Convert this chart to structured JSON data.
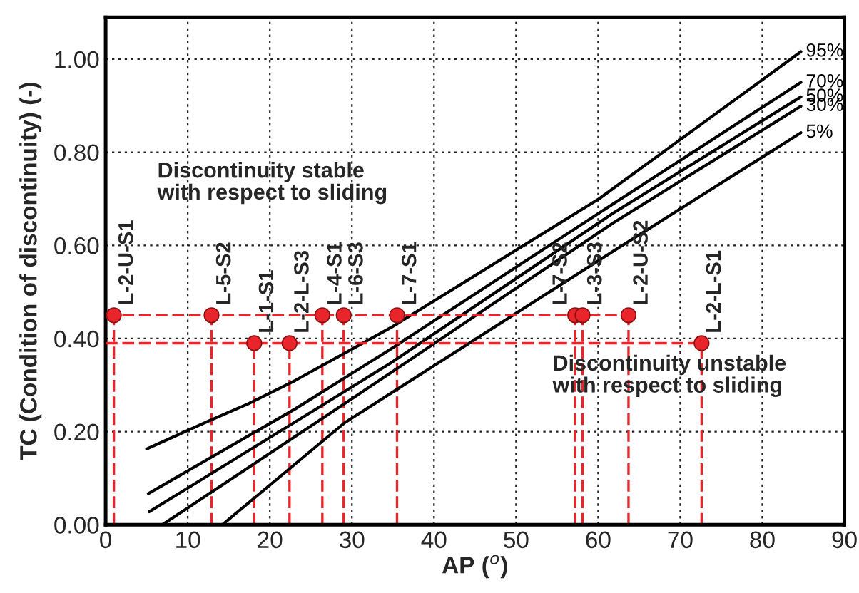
{
  "chart_data": {
    "type": "line",
    "xlabel": "AP ($^{o}$)",
    "ylabel": "TC (Condition of discontinuity) (-)",
    "xlim": [
      0,
      90
    ],
    "xticks": [
      0,
      10,
      20,
      30,
      40,
      50,
      60,
      70,
      80,
      90
    ],
    "ylim": [
      0,
      1.09
    ],
    "yticks": [
      {
        "value": 0,
        "label": "0.00"
      },
      {
        "value": 0.2,
        "label": "0.20"
      },
      {
        "value": 0.4,
        "label": "0.40"
      },
      {
        "value": 0.6,
        "label": "0.60"
      },
      {
        "value": 0.8,
        "label": "0.80"
      },
      {
        "value": 1.0,
        "label": "1.00"
      }
    ],
    "grid": true,
    "legend": false,
    "line_style": "solid",
    "series": [
      {
        "name": "95%",
        "color": "#000000",
        "x": [
          5,
          12.7,
          17.4,
          23.1,
          34.7,
          60.1,
          84.7
        ],
        "values": [
          0.163,
          0.224,
          0.26,
          0.31,
          0.423,
          0.7,
          1.016
        ]
      },
      {
        "name": "70%",
        "color": "#000000",
        "x": [
          5.2,
          23.1,
          34.7,
          61.8,
          84.7
        ],
        "values": [
          0.067,
          0.249,
          0.377,
          0.689,
          0.95
        ]
      },
      {
        "name": "50%",
        "color": "#000000",
        "x": [
          5.3,
          34.7,
          61.8,
          84.7
        ],
        "values": [
          0.028,
          0.347,
          0.669,
          0.919
        ]
      },
      {
        "name": "30%",
        "color": "#000000",
        "x": [
          6.9,
          34.7,
          61.8,
          84.7
        ],
        "values": [
          0,
          0.326,
          0.648,
          0.899
        ]
      },
      {
        "name": "5%",
        "color": "#000000",
        "x": [
          14.2,
          29.1,
          61.8,
          84.7
        ],
        "values": [
          0,
          0.219,
          0.587,
          0.842
        ]
      },
      {
        "color": "#e8252a",
        "line_style": "dashed",
        "x": [
          0,
          63.7
        ],
        "values": [
          0.45,
          0.45
        ]
      },
      {
        "color": "#e8252a",
        "line_style": "dashed",
        "x": [
          0,
          72.6
        ],
        "values": [
          0.39,
          0.39
        ]
      },
      {
        "type": "scatter",
        "color": "#e8252a",
        "marker": "circle",
        "x": [
          1.0,
          12.9,
          18.1,
          22.4,
          26.4,
          29.0,
          35.5,
          57.2,
          58.1,
          63.7,
          72.6
        ],
        "values": [
          0.45,
          0.45,
          0.39,
          0.39,
          0.45,
          0.45,
          0.45,
          0.45,
          0.45,
          0.45,
          0.39
        ]
      }
    ],
    "annotations": [
      "Discontinuity stable\nwith respect to sliding",
      "Discontinuity unstable\nwith respect to sliding",
      {
        "text": "L-2-U-S1",
        "x": 1.0,
        "y": 0.45
      },
      {
        "text": "L-5-S2",
        "x": 12.9,
        "y": 0.45
      },
      {
        "text": "L-1-S1",
        "x": 18.1,
        "y": 0.39
      },
      {
        "text": "L-2-L-S3",
        "x": 22.4,
        "y": 0.39
      },
      {
        "text": "L-4-S1",
        "x": 26.4,
        "y": 0.45
      },
      {
        "text": "L-6-S3",
        "x": 29.0,
        "y": 0.45
      },
      {
        "text": "L-7-S1",
        "x": 35.5,
        "y": 0.45
      },
      {
        "text": "L-7-S2",
        "x": 57.2,
        "y": 0.45
      },
      {
        "text": "L-3-S3",
        "x": 58.1,
        "y": 0.45
      },
      {
        "text": "L-2-U-S2",
        "x": 63.7,
        "y": 0.45
      },
      {
        "text": "L-2-L-S1",
        "x": 72.6,
        "y": 0.39
      }
    ]
  }
}
